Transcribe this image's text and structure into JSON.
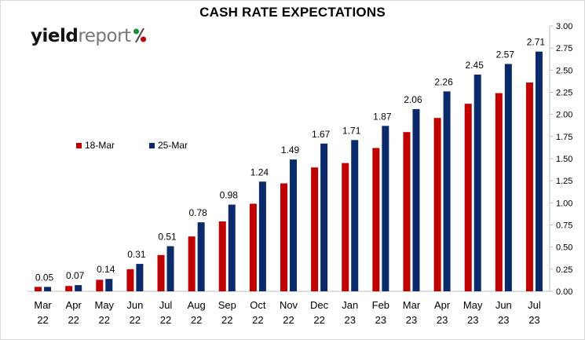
{
  "chart_data": {
    "type": "bar",
    "title": "CASH RATE EXPECTATIONS",
    "brand": "yieldreport%",
    "categories": [
      "Mar 22",
      "Apr 22",
      "May 22",
      "Jun 22",
      "Jul 22",
      "Aug 22",
      "Sep 22",
      "Oct 22",
      "Nov 22",
      "Dec 22",
      "Jan 23",
      "Feb 23",
      "Mar 23",
      "Apr 23",
      "May 23",
      "Jun 23",
      "Jul 23"
    ],
    "series": [
      {
        "name": "18-Mar",
        "color": "#c00000",
        "values": [
          0.05,
          0.06,
          0.13,
          0.25,
          0.41,
          0.62,
          0.79,
          0.99,
          1.22,
          1.4,
          1.45,
          1.62,
          1.8,
          1.96,
          2.12,
          2.24,
          2.36
        ]
      },
      {
        "name": "25-Mar",
        "color": "#0b2a6b",
        "values": [
          0.05,
          0.07,
          0.14,
          0.31,
          0.51,
          0.78,
          0.98,
          1.24,
          1.49,
          1.67,
          1.71,
          1.87,
          2.06,
          2.26,
          2.45,
          2.57,
          2.71
        ]
      }
    ],
    "data_labels": [
      "0.05",
      "0.07",
      "0.14",
      "0.31",
      "0.51",
      "0.78",
      "0.98",
      "1.24",
      "1.49",
      "1.67",
      "1.71",
      "1.87",
      "2.06",
      "2.26",
      "2.45",
      "2.57",
      "2.71"
    ],
    "ylim": [
      0,
      3.0
    ],
    "yticks": [
      "0.00",
      "0.25",
      "0.50",
      "0.75",
      "1.00",
      "1.25",
      "1.50",
      "1.75",
      "2.00",
      "2.25",
      "2.50",
      "2.75",
      "3.00"
    ],
    "y_axis_side": "right",
    "grid": false,
    "legend": "left-middle",
    "xlabel": "",
    "ylabel": ""
  }
}
